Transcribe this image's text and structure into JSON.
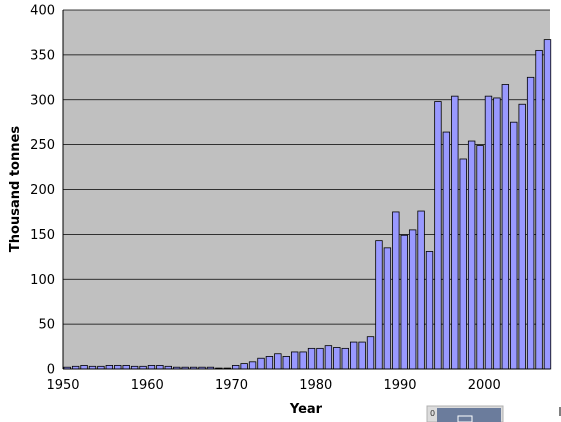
{
  "chart_data": {
    "type": "bar",
    "title": "",
    "xlabel": "Year",
    "ylabel": "Thousand tonnes",
    "ylim": [
      0,
      400
    ],
    "yticks": [
      0,
      50,
      100,
      150,
      200,
      250,
      300,
      350,
      400
    ],
    "xticks": [
      1950,
      1960,
      1970,
      1980,
      1990,
      2000
    ],
    "x": [
      1950,
      1951,
      1952,
      1953,
      1954,
      1955,
      1956,
      1957,
      1958,
      1959,
      1960,
      1961,
      1962,
      1963,
      1964,
      1965,
      1966,
      1967,
      1968,
      1969,
      1970,
      1971,
      1972,
      1973,
      1974,
      1975,
      1976,
      1977,
      1978,
      1979,
      1980,
      1981,
      1982,
      1983,
      1984,
      1985,
      1986,
      1987,
      1988,
      1989,
      1990,
      1991,
      1992,
      1993,
      1994,
      1995,
      1996,
      1997,
      1998,
      1999,
      2000,
      2001,
      2002,
      2003,
      2004,
      2005,
      2006,
      2007
    ],
    "values": [
      2,
      3,
      4,
      3,
      3,
      4,
      4,
      4,
      3,
      3,
      4,
      4,
      3,
      2,
      2,
      2,
      2,
      2,
      1,
      1,
      4,
      6,
      8,
      12,
      14,
      17,
      14,
      19,
      19,
      23,
      23,
      26,
      24,
      23,
      30,
      30,
      36,
      143,
      135,
      175,
      149,
      155,
      176,
      131,
      298,
      264,
      304,
      234,
      254,
      249,
      304,
      302,
      317,
      275,
      295,
      325,
      355,
      367
    ],
    "grid": true,
    "legend": "none",
    "colors": {
      "plot_background": "#c0c0c0",
      "bar_fill": "#9999ff",
      "grid": "#000000"
    }
  },
  "overlay": {
    "partial_label": "0"
  }
}
